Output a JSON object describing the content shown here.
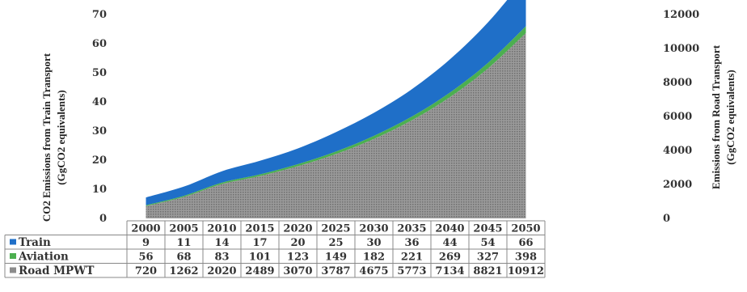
{
  "chart_data": {
    "type": "area",
    "x": [
      "2000",
      "2005",
      "2010",
      "2015",
      "2020",
      "2025",
      "2030",
      "2035",
      "2040",
      "2045",
      "2050"
    ],
    "series": [
      {
        "name": "Train",
        "color": "#1f6fc8",
        "axis": "left",
        "values": [
          9,
          11,
          14,
          17,
          20,
          25,
          30,
          36,
          44,
          54,
          66
        ]
      },
      {
        "name": "Aviation",
        "color": "#4caf50",
        "axis": "right",
        "values": [
          56,
          68,
          83,
          101,
          123,
          149,
          182,
          221,
          269,
          327,
          398
        ]
      },
      {
        "name": "Road MPWT",
        "color": "#8c8c8c",
        "axis": "right",
        "values": [
          720,
          1262,
          2020,
          2489,
          3070,
          3787,
          4675,
          5773,
          7134,
          8821,
          10912
        ]
      }
    ],
    "y_left": {
      "label_line1": "CO2 Emissions from Train Transport",
      "label_line2": "(GgCO2 equivalents)",
      "range": [
        0,
        70
      ],
      "ticks": [
        "0",
        "10",
        "20",
        "30",
        "40",
        "50",
        "60",
        "70"
      ]
    },
    "y_right": {
      "label_line1": "Emissions from Road Transport",
      "label_line2": "(GgCO2 equivalents)",
      "range": [
        0,
        12000
      ],
      "ticks": [
        "0",
        "2000",
        "4000",
        "6000",
        "8000",
        "10000",
        "12000"
      ]
    },
    "table": {
      "row_labels": [
        "Train",
        "Aviation",
        "Road MPWT"
      ]
    },
    "legend_placement": "data-table"
  }
}
